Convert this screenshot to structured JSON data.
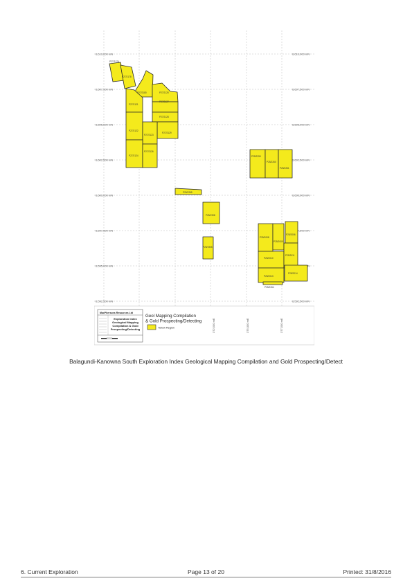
{
  "northing_labels": [
    "6,610,000 mN",
    "6,607,500 mN",
    "6,605,000 mN",
    "6,602,500 mN",
    "6,600,000 mN",
    "6,597,500 mN",
    "6,595,000 mN",
    "6,592,500 mN"
  ],
  "northing_right_extra": "6,590,000 mN",
  "easting_labels": [
    "372,500 mE",
    "375,000 mE",
    "377,500 mE"
  ],
  "tenements": [
    {
      "id": "P27/2176"
    },
    {
      "id": "P27/2178"
    },
    {
      "id": "P27/2180"
    },
    {
      "id": "P27/2121"
    },
    {
      "id": "P27/2122"
    },
    {
      "id": "P27/2123"
    },
    {
      "id": "P27/2124"
    },
    {
      "id": "P27/2125"
    },
    {
      "id": "P27/2126"
    },
    {
      "id": "P27/2127"
    },
    {
      "id": "P27/2128"
    },
    {
      "id": "P27/2129"
    },
    {
      "id": "P25/2259"
    },
    {
      "id": "P25/2260"
    },
    {
      "id": "P25/2261"
    },
    {
      "id": "P25/2265"
    },
    {
      "id": "P25/1908"
    },
    {
      "id": "P25/1905"
    },
    {
      "id": "P25/2008"
    },
    {
      "id": "P25/2009"
    },
    {
      "id": "P25/2006"
    },
    {
      "id": "P25/2010"
    },
    {
      "id": "P25/2011"
    },
    {
      "id": "P25/2013"
    },
    {
      "id": "P25/2014"
    },
    {
      "id": "P25/2264"
    }
  ],
  "legend": {
    "company": "MacPhersons Resources Ltd",
    "title_block": [
      "Exploration Index",
      "Geological Mapping",
      "Compilation & Gold",
      "Prospecting/Detecting"
    ],
    "heading": [
      "Geol Mapping Compilation",
      "& Gold Prospecting/Detecting"
    ],
    "key_label": "Yellow Region"
  },
  "colors": {
    "tenement_fill": "#f4ea1c",
    "tenement_stroke": "#2b2b2b",
    "grid": "#bdbdbd"
  },
  "caption": "Balagundi-Kanowna South Exploration Index Geological Mapping Compilation and Gold Prospecting/Detect",
  "footer": {
    "section": "6. Current Exploration",
    "page": "Page 13 of 20",
    "printed": "Printed: 31/8/2016"
  }
}
